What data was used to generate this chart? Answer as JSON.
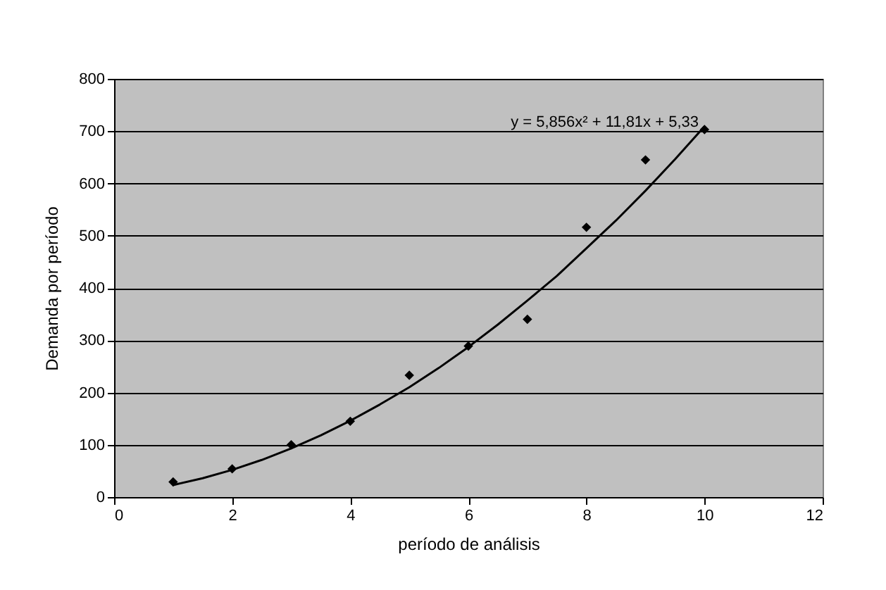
{
  "chart_data": {
    "type": "scatter",
    "xlabel": "período de análisis",
    "ylabel": "Demanda por período",
    "xlim": [
      0,
      12
    ],
    "xticks": [
      0,
      2,
      4,
      6,
      8,
      10,
      12
    ],
    "ylim": [
      0,
      800
    ],
    "yticks": [
      0,
      100,
      200,
      300,
      400,
      500,
      600,
      700,
      800
    ],
    "grid": "y",
    "annotations": [
      "y = 5,856x² + 11,81x + 5,33"
    ],
    "series": [
      {
        "color": "#000000",
        "marker": "diamond",
        "x": [
          1,
          2,
          3,
          4,
          5,
          6,
          7,
          8,
          9,
          10
        ],
        "values": [
          29,
          54,
          100,
          145,
          233,
          289,
          340,
          516,
          645,
          703
        ]
      },
      {
        "type": "line",
        "color": "#000000",
        "marker": "none",
        "line_style": "solid",
        "x": [
          1,
          1.5,
          2,
          2.5,
          3,
          3.5,
          4,
          4.5,
          5,
          5.5,
          6,
          6.5,
          7,
          7.5,
          8,
          8.5,
          9,
          9.5,
          10
        ],
        "values": [
          23,
          36,
          52,
          71,
          93,
          118,
          146,
          177,
          210,
          247,
          287,
          330,
          376,
          423,
          476,
          529,
          586,
          646,
          709
        ]
      }
    ]
  }
}
